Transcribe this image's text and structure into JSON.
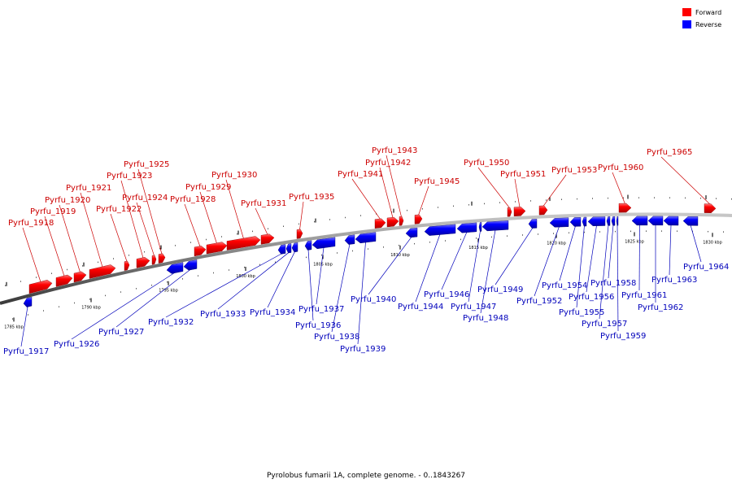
{
  "legend": {
    "forward_label": "Forward",
    "reverse_label": "Reverse",
    "forward_color": "#ff0000",
    "reverse_color": "#0000ff"
  },
  "footer": {
    "caption": "Pyrolobus fumarii 1A, complete genome. - 0..1843267"
  },
  "chart_data": {
    "type": "genome-map",
    "kbp_ticks": [
      "1785 kbp",
      "1790 kbp",
      "1795 kbp",
      "1800 kbp",
      "1805 kbp",
      "1810 kbp",
      "1815 kbp",
      "1820 kbp",
      "1825 kbp",
      "1830 kbp"
    ],
    "forward_genes": [
      "Pyrfu_1918",
      "Pyrfu_1919",
      "Pyrfu_1920",
      "Pyrfu_1921",
      "Pyrfu_1922",
      "Pyrfu_1923",
      "Pyrfu_1924",
      "Pyrfu_1925",
      "Pyrfu_1928",
      "Pyrfu_1929",
      "Pyrfu_1930",
      "Pyrfu_1931",
      "Pyrfu_1935",
      "Pyrfu_1941",
      "Pyrfu_1942",
      "Pyrfu_1943",
      "Pyrfu_1945",
      "Pyrfu_1950",
      "Pyrfu_1951",
      "Pyrfu_1953",
      "Pyrfu_1960",
      "Pyrfu_1965"
    ],
    "reverse_genes": [
      "Pyrfu_1917",
      "Pyrfu_1926",
      "Pyrfu_1927",
      "Pyrfu_1932",
      "Pyrfu_1933",
      "Pyrfu_1934",
      "Pyrfu_1936",
      "Pyrfu_1937",
      "Pyrfu_1938",
      "Pyrfu_1939",
      "Pyrfu_1940",
      "Pyrfu_1944",
      "Pyrfu_1946",
      "Pyrfu_1947",
      "Pyrfu_1948",
      "Pyrfu_1949",
      "Pyrfu_1952",
      "Pyrfu_1954",
      "Pyrfu_1955",
      "Pyrfu_1956",
      "Pyrfu_1957",
      "Pyrfu_1958",
      "Pyrfu_1959",
      "Pyrfu_1961",
      "Pyrfu_1962",
      "Pyrfu_1963",
      "Pyrfu_1964"
    ]
  }
}
